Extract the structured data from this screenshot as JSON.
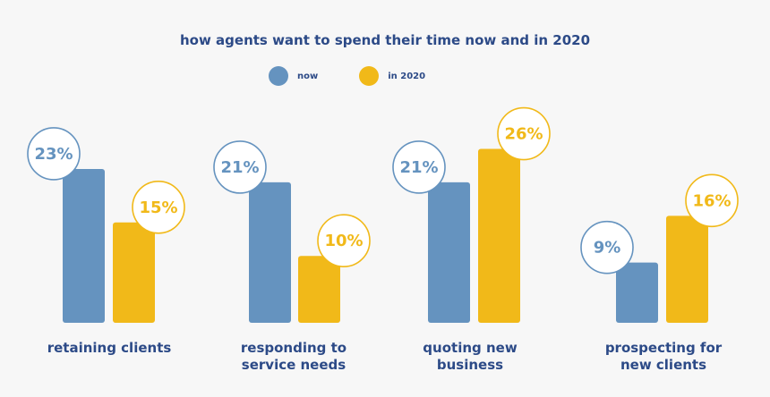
{
  "colors": {
    "now": "#6593bf",
    "in2020": "#f1b919",
    "text": "#2c4a87",
    "background": "#f7f7f7"
  },
  "chart_data": {
    "type": "bar",
    "title": "how agents want to spend their time now and in 2020",
    "categories": [
      {
        "line1": "retaining clients",
        "line2": ""
      },
      {
        "line1": "responding to",
        "line2": "service needs"
      },
      {
        "line1": "quoting new",
        "line2": "business"
      },
      {
        "line1": "prospecting for",
        "line2": "new clients"
      }
    ],
    "series": [
      {
        "name": "now",
        "values": [
          23,
          21,
          21,
          9
        ],
        "labels": [
          "23%",
          "21%",
          "21%",
          "9%"
        ]
      },
      {
        "name": "in 2020",
        "values": [
          15,
          10,
          26,
          16
        ],
        "labels": [
          "15%",
          "10%",
          "26%",
          "16%"
        ]
      }
    ],
    "legend": "top-center",
    "grid": false,
    "ylim": [
      0,
      30
    ]
  }
}
